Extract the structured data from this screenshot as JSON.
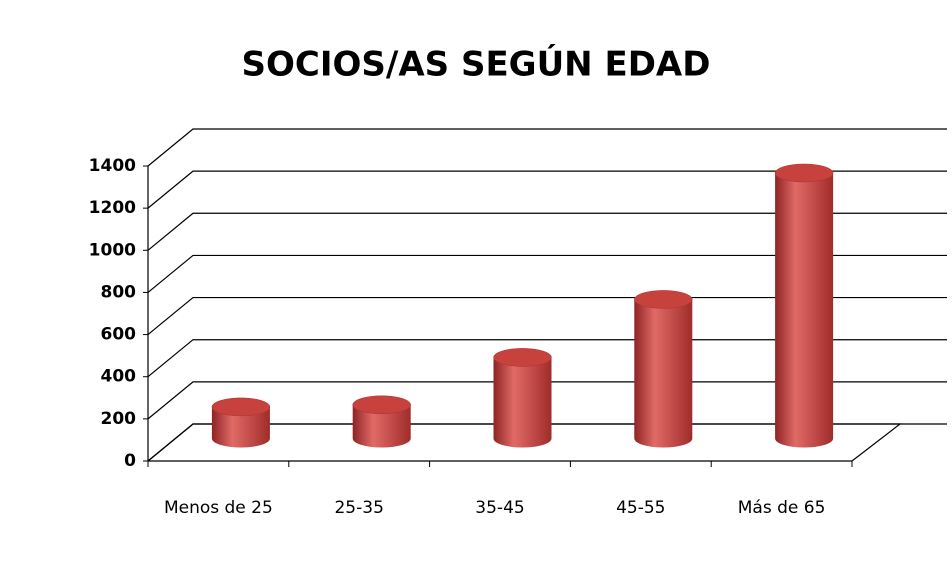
{
  "chart_data": {
    "type": "bar",
    "title": "SOCIOS/AS SEGÚN EDAD",
    "categories": [
      "Menos de 25",
      "25-35",
      "35-45",
      "45-55",
      "Más de 65"
    ],
    "values": [
      150,
      160,
      385,
      660,
      1260
    ],
    "color": "#c0392b",
    "ylim": [
      0,
      1400
    ],
    "yticks": [
      0,
      200,
      400,
      600,
      800,
      1000,
      1200,
      1400
    ],
    "grid": true
  }
}
